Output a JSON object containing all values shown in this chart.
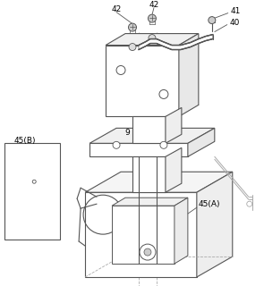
{
  "fig_width": 2.95,
  "fig_height": 3.2,
  "dpi": 100,
  "lc": "#555555",
  "ll": "#aaaaaa",
  "thin": "#888888"
}
